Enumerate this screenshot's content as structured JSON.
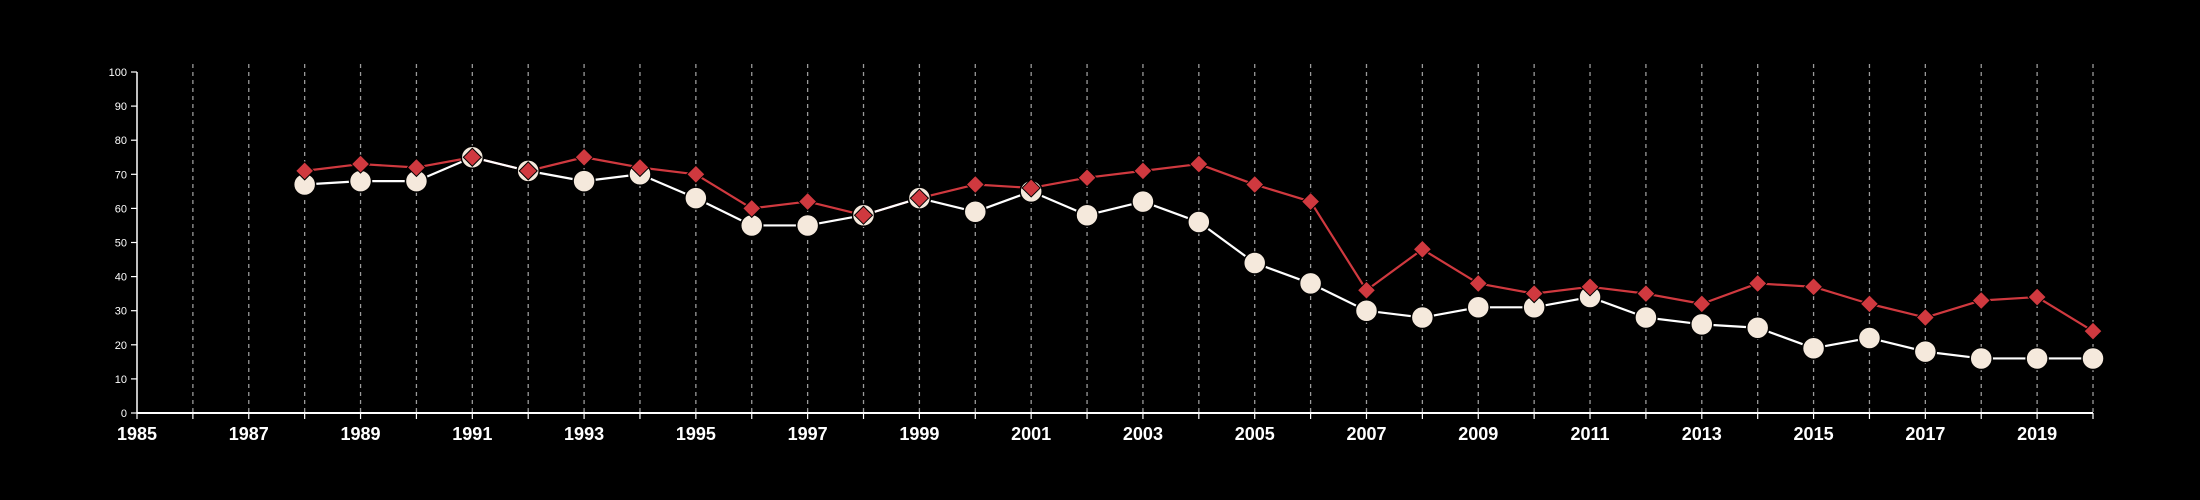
{
  "chart_data": {
    "type": "line",
    "title": "",
    "xlabel": "",
    "ylabel": "",
    "xlim": [
      1985,
      2020
    ],
    "ylim": [
      0,
      100
    ],
    "x_ticks": [
      1985,
      1987,
      1989,
      1991,
      1993,
      1995,
      1997,
      1999,
      2001,
      2003,
      2005,
      2007,
      2009,
      2011,
      2013,
      2015,
      2017,
      2019
    ],
    "y_ticks": [
      0,
      10,
      20,
      30,
      40,
      50,
      60,
      70,
      80,
      90,
      100
    ],
    "grid": "vertical dashed lines at each year",
    "legend": "none",
    "background_color": "#000000",
    "x": [
      1988,
      1989,
      1990,
      1991,
      1992,
      1993,
      1994,
      1995,
      1996,
      1997,
      1998,
      1999,
      2000,
      2001,
      2002,
      2003,
      2004,
      2005,
      2006,
      2007,
      2008,
      2009,
      2010,
      2011,
      2012,
      2013,
      2014,
      2015,
      2016,
      2017,
      2018,
      2019,
      2020
    ],
    "series": [
      {
        "marker": "diamond",
        "color": "#d0393f",
        "values": [
          71,
          73,
          72,
          75,
          71,
          75,
          72,
          70,
          60,
          62,
          58,
          63,
          67,
          66,
          69,
          71,
          73,
          67,
          62,
          36,
          48,
          38,
          35,
          37,
          35,
          32,
          38,
          37,
          32,
          28,
          33,
          34,
          24
        ]
      },
      {
        "marker": "circle",
        "color": "#f5e9dc",
        "line_color": "#ffffff",
        "values": [
          67,
          68,
          68,
          75,
          71,
          68,
          70,
          63,
          55,
          55,
          58,
          63,
          59,
          65,
          58,
          62,
          56,
          44,
          38,
          30,
          28,
          31,
          31,
          34,
          28,
          26,
          25,
          19,
          22,
          18,
          16,
          16,
          16
        ]
      }
    ]
  }
}
